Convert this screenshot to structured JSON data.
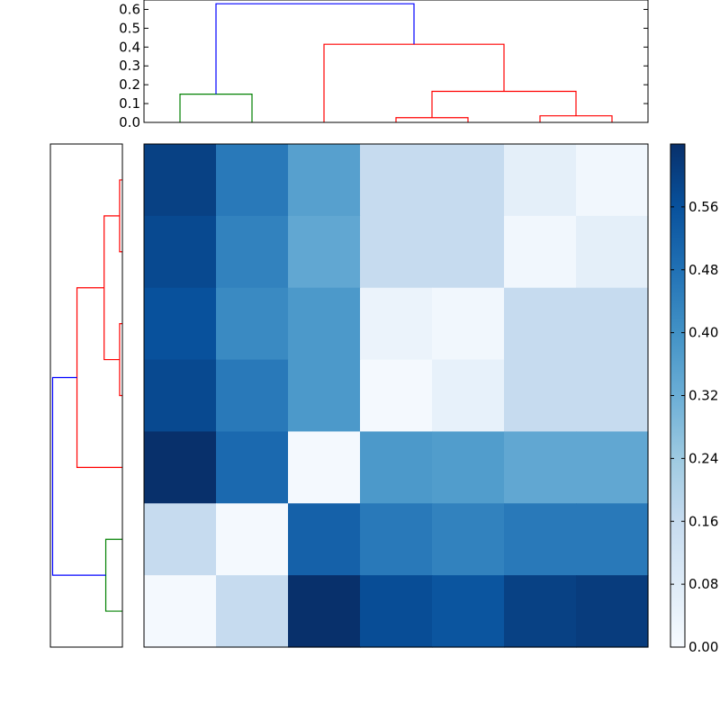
{
  "chart_data": {
    "type": "heatmap",
    "title": "",
    "xlabel": "",
    "ylabel": "",
    "matrix": [
      [
        0.6,
        0.46,
        0.36,
        0.16,
        0.16,
        0.06,
        0.02
      ],
      [
        0.58,
        0.44,
        0.34,
        0.16,
        0.16,
        0.02,
        0.06
      ],
      [
        0.56,
        0.42,
        0.38,
        0.04,
        0.02,
        0.16,
        0.16
      ],
      [
        0.58,
        0.46,
        0.38,
        0.01,
        0.05,
        0.16,
        0.16
      ],
      [
        0.64,
        0.5,
        0.01,
        0.38,
        0.37,
        0.34,
        0.34
      ],
      [
        0.16,
        0.01,
        0.52,
        0.46,
        0.44,
        0.46,
        0.46
      ],
      [
        0.01,
        0.16,
        0.66,
        0.57,
        0.55,
        0.6,
        0.61
      ]
    ],
    "vmin": 0.0,
    "vmax": 0.64,
    "colormap": "Blues",
    "colorbar": {
      "ticks": [
        0.0,
        0.08,
        0.16,
        0.24,
        0.32,
        0.4,
        0.48,
        0.56
      ],
      "tick_labels": [
        "0.00",
        "0.08",
        "0.16",
        "0.24",
        "0.32",
        "0.40",
        "0.48",
        "0.56"
      ]
    },
    "top_dendrogram": {
      "ylim": [
        0.0,
        0.65
      ],
      "ticks": [
        0.0,
        0.1,
        0.2,
        0.3,
        0.4,
        0.5,
        0.6
      ],
      "tick_labels": [
        "0.0",
        "0.1",
        "0.2",
        "0.3",
        "0.4",
        "0.5",
        "0.6"
      ],
      "leaf_count": 7,
      "links": [
        {
          "left": 0,
          "right": 1,
          "height": 0.15,
          "lh": 0.0,
          "rh": 0.0,
          "color": "#008000"
        },
        {
          "left": 3,
          "right": 4,
          "height": 0.025,
          "lh": 0.0,
          "rh": 0.0,
          "color": "#ff0000"
        },
        {
          "left": 5,
          "right": 6,
          "height": 0.035,
          "lh": 0.0,
          "rh": 0.0,
          "color": "#ff0000"
        },
        {
          "left": 3.5,
          "right": 5.5,
          "height": 0.165,
          "lh": 0.025,
          "rh": 0.035,
          "color": "#ff0000"
        },
        {
          "left": 2,
          "right": 4.5,
          "height": 0.415,
          "lh": 0.0,
          "rh": 0.165,
          "color": "#ff0000"
        },
        {
          "left": 0.5,
          "right": 3.25,
          "height": 0.63,
          "lh": 0.15,
          "rh": 0.415,
          "color": "#0000ff"
        }
      ]
    },
    "left_dendrogram": {
      "leaf_count": 7,
      "links": [
        {
          "left": 0,
          "right": 1,
          "height": 0.025,
          "lh": 0.0,
          "rh": 0.0,
          "color": "#ff0000"
        },
        {
          "left": 2,
          "right": 3,
          "height": 0.025,
          "lh": 0.0,
          "rh": 0.0,
          "color": "#ff0000"
        },
        {
          "left": 0.5,
          "right": 2.5,
          "height": 0.165,
          "lh": 0.025,
          "rh": 0.025,
          "color": "#ff0000"
        },
        {
          "left": 1.5,
          "right": 4,
          "height": 0.41,
          "lh": 0.165,
          "rh": 0.0,
          "color": "#ff0000"
        },
        {
          "left": 5,
          "right": 6,
          "height": 0.15,
          "lh": 0.0,
          "rh": 0.0,
          "color": "#008000"
        },
        {
          "left": 2.75,
          "right": 5.5,
          "height": 0.63,
          "lh": 0.41,
          "rh": 0.15,
          "color": "#0000ff"
        }
      ]
    }
  }
}
